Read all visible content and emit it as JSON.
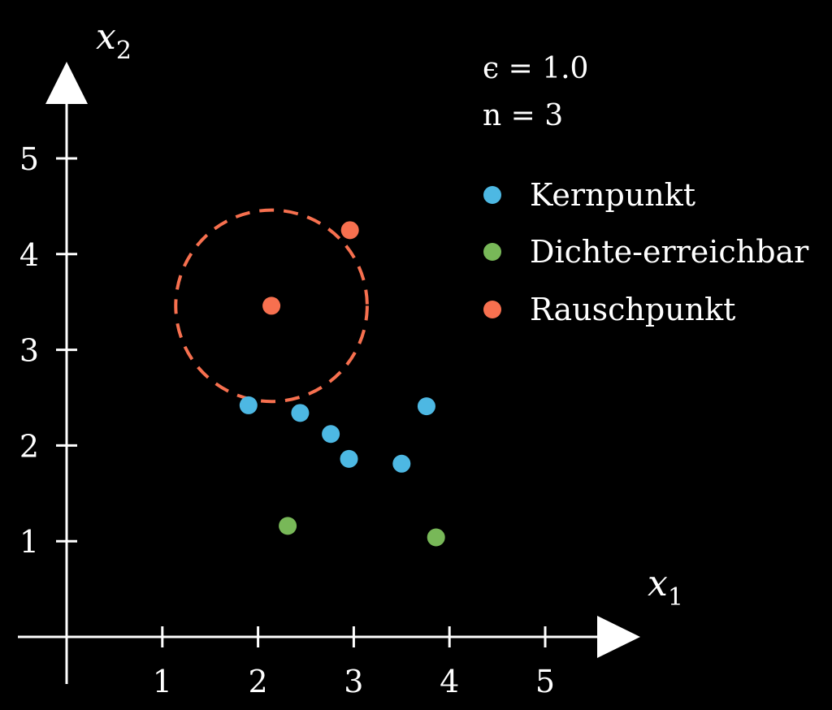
{
  "colors": {
    "background": "#000000",
    "axis": "#ffffff",
    "kernpunkt": "#4db8e3",
    "dichte": "#78b858",
    "rausch": "#f7704f"
  },
  "parameters": {
    "epsilon_text": "ϵ = 1.0",
    "n_text": "n = 3"
  },
  "chart_data": {
    "type": "scatter",
    "xlabel": "x",
    "xlabel_sub": "1",
    "ylabel": "x",
    "ylabel_sub": "2",
    "xlim": [
      0,
      5.8
    ],
    "ylim": [
      0,
      5.8
    ],
    "x_ticks": [
      "1",
      "2",
      "3",
      "4",
      "5"
    ],
    "y_ticks": [
      "1",
      "2",
      "3",
      "4",
      "5"
    ],
    "grid": false,
    "legend_position": "top-right",
    "series": [
      {
        "name": "Kernpunkt",
        "color": "#4db8e3",
        "points": [
          [
            1.9,
            2.42
          ],
          [
            2.44,
            2.34
          ],
          [
            2.76,
            2.12
          ],
          [
            2.95,
            1.86
          ],
          [
            3.5,
            1.81
          ],
          [
            3.76,
            2.41
          ]
        ]
      },
      {
        "name": "Dichte-erreichbar",
        "color": "#78b858",
        "points": [
          [
            2.31,
            1.16
          ],
          [
            3.86,
            1.04
          ]
        ]
      },
      {
        "name": "Rauschpunkt",
        "color": "#f7704f",
        "points": [
          [
            2.14,
            3.46
          ],
          [
            2.96,
            4.25
          ]
        ]
      }
    ],
    "epsilon_circle": {
      "center": [
        2.14,
        3.46
      ],
      "radius": 1.0,
      "style": "dashed",
      "color": "#f7704f"
    }
  }
}
